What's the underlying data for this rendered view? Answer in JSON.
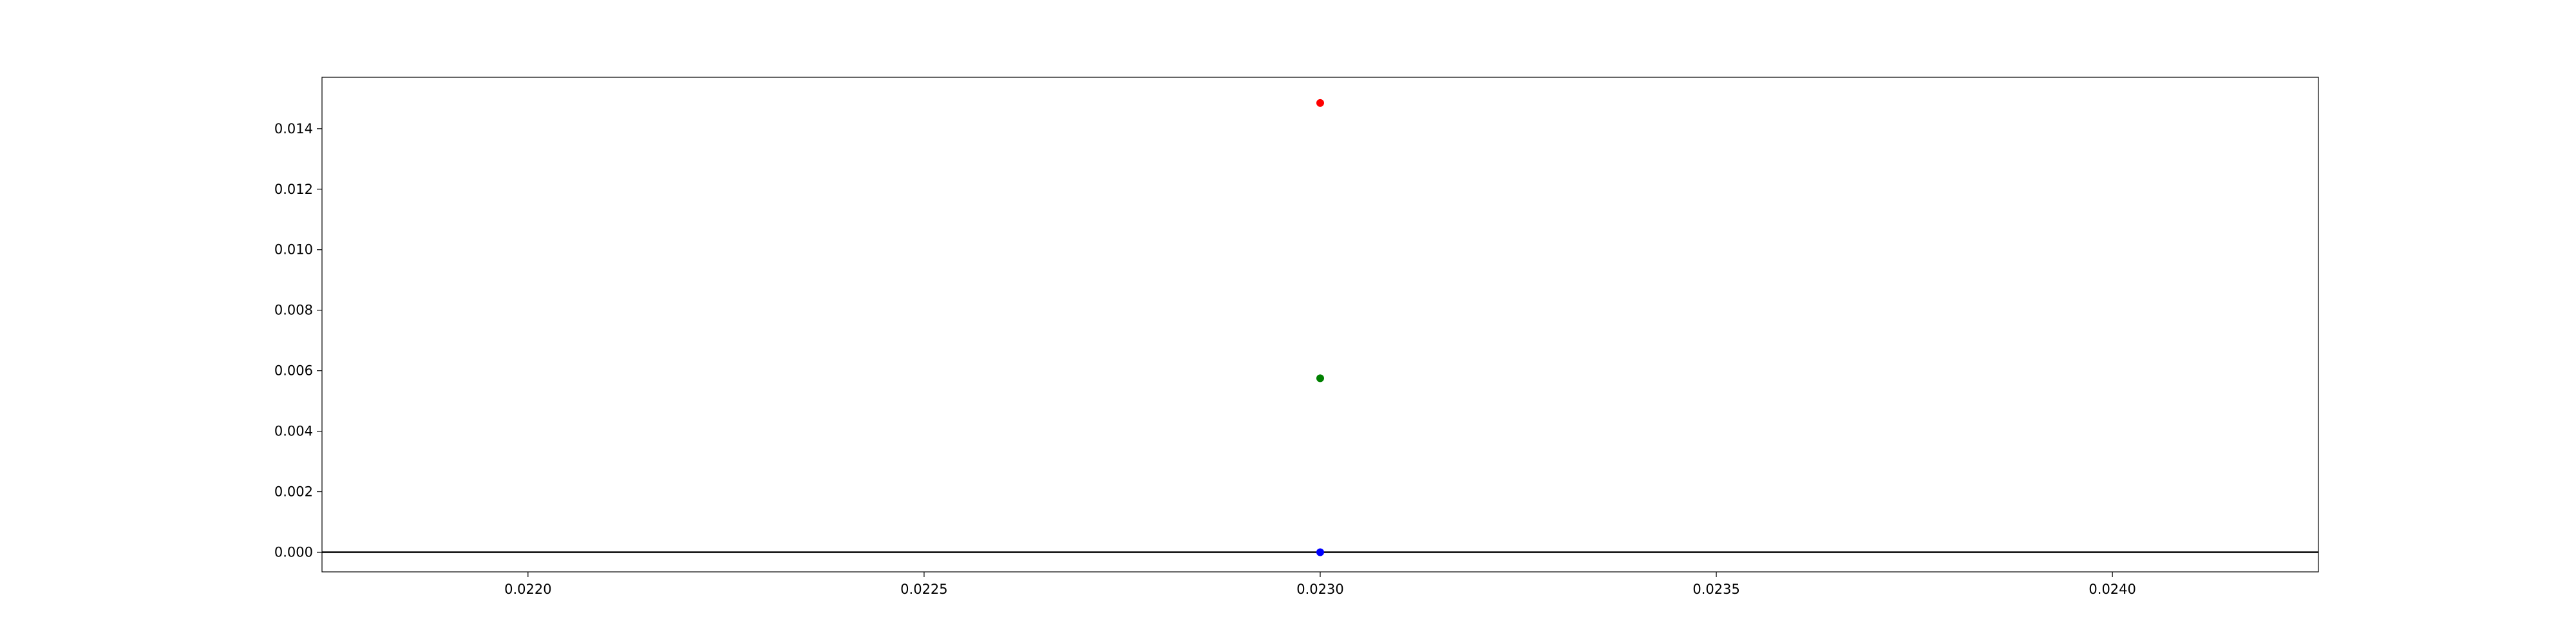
{
  "chart_data": {
    "type": "scatter",
    "title": "",
    "xlabel": "",
    "ylabel": "",
    "xlim": [
      0.02174,
      0.02426
    ],
    "ylim": [
      -0.00065,
      0.0157
    ],
    "x_ticks": [
      {
        "value": 0.022,
        "label": "0.0220"
      },
      {
        "value": 0.0225,
        "label": "0.0225"
      },
      {
        "value": 0.023,
        "label": "0.0230"
      },
      {
        "value": 0.0235,
        "label": "0.0235"
      },
      {
        "value": 0.024,
        "label": "0.0240"
      }
    ],
    "y_ticks": [
      {
        "value": 0.0,
        "label": "0.000"
      },
      {
        "value": 0.002,
        "label": "0.002"
      },
      {
        "value": 0.004,
        "label": "0.004"
      },
      {
        "value": 0.006,
        "label": "0.006"
      },
      {
        "value": 0.008,
        "label": "0.008"
      },
      {
        "value": 0.01,
        "label": "0.010"
      },
      {
        "value": 0.012,
        "label": "0.012"
      },
      {
        "value": 0.014,
        "label": "0.014"
      }
    ],
    "grid": false,
    "reference_lines": [
      {
        "orientation": "horizontal",
        "y": 0.0,
        "color": "#000000"
      }
    ],
    "points": [
      {
        "x": 0.023,
        "y": 0.01485,
        "color": "#ff0000"
      },
      {
        "x": 0.023,
        "y": 0.00575,
        "color": "#008000"
      },
      {
        "x": 0.023,
        "y": 0.0,
        "color": "#0000ff"
      }
    ]
  }
}
